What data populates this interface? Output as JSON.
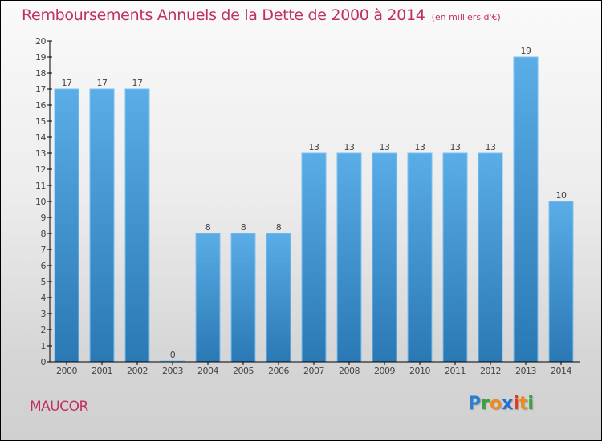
{
  "header": {
    "title": "Remboursements Annuels de la Dette de 2000 à 2014",
    "unit": "(en milliers d'€)"
  },
  "footer": {
    "commune": "MAUCOR",
    "brand_letters": [
      {
        "ch": "P",
        "color": "#2a7fd4"
      },
      {
        "ch": "r",
        "color": "#3aa040"
      },
      {
        "ch": "o",
        "color": "#f08a1c"
      },
      {
        "ch": "x",
        "color": "#1f6fd0"
      },
      {
        "ch": "i",
        "color": "#e03a2a"
      },
      {
        "ch": "t",
        "color": "#f08a1c"
      },
      {
        "ch": "i",
        "color": "#3aa040"
      }
    ]
  },
  "colors": {
    "title": "#c0305f",
    "bar_top": "#5aade6",
    "bar_bottom": "#2a78b4",
    "bar_edge": "#7cc0f0"
  },
  "chart_data": {
    "type": "bar",
    "title": "Remboursements Annuels de la Dette de 2000 à 2014",
    "subtitle": "(en milliers d'€)",
    "xlabel": "",
    "ylabel": "",
    "categories": [
      "2000",
      "2001",
      "2002",
      "2003",
      "2004",
      "2005",
      "2006",
      "2007",
      "2008",
      "2009",
      "2010",
      "2011",
      "2012",
      "2013",
      "2014"
    ],
    "values": [
      17,
      17,
      17,
      0,
      8,
      8,
      8,
      13,
      13,
      13,
      13,
      13,
      13,
      19,
      10
    ],
    "data_labels": [
      "17",
      "17",
      "17",
      "0",
      "8",
      "8",
      "8",
      "13",
      "13",
      "13",
      "13",
      "13",
      "13",
      "19",
      "10"
    ],
    "ylim": [
      0,
      20
    ],
    "yticks": [
      0,
      1,
      2,
      3,
      4,
      5,
      6,
      7,
      8,
      9,
      10,
      11,
      12,
      13,
      14,
      15,
      16,
      17,
      18,
      19,
      20
    ],
    "grid": false,
    "legend": "none"
  }
}
